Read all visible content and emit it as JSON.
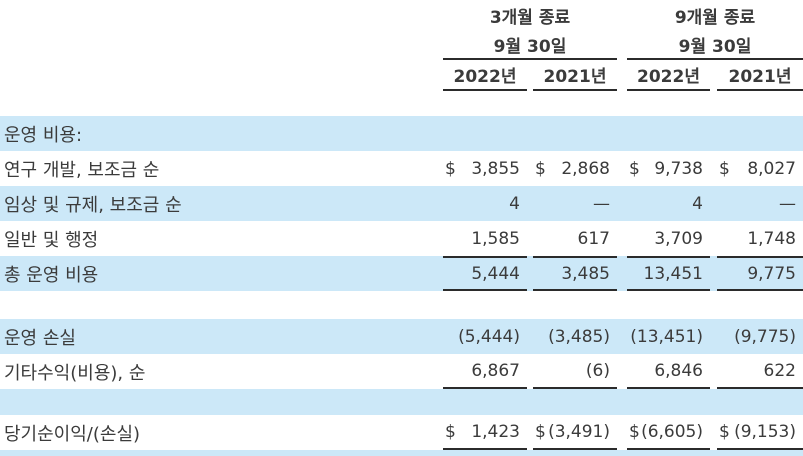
{
  "table": {
    "currency_symbol": "$",
    "colors": {
      "row_highlight": "#cce8f8",
      "text": "#3b3b3b",
      "rule": "#2b2b2b"
    },
    "header": {
      "groups": [
        {
          "period_label": "3개월 종료",
          "date_label": "9월 30일",
          "years": [
            "2022년",
            "2021년"
          ]
        },
        {
          "period_label": "9개월 종료",
          "date_label": "9월 30일",
          "years": [
            "2022년",
            "2021년"
          ]
        }
      ]
    },
    "rows": [
      {
        "label": "운영 비용:",
        "values": [
          "",
          "",
          "",
          ""
        ]
      },
      {
        "label": "연구 개발, 보조금 순",
        "values": [
          "3,855",
          "2,868",
          "9,738",
          "8,027"
        ]
      },
      {
        "label": "임상 및 규제, 보조금 순",
        "values": [
          "4",
          "—",
          "4",
          "—"
        ]
      },
      {
        "label": "일반 및 행정",
        "values": [
          "1,585",
          "617",
          "3,709",
          "1,748"
        ]
      },
      {
        "label": "총 운영 비용",
        "values": [
          "5,444",
          "3,485",
          "13,451",
          "9,775"
        ]
      },
      {
        "label": "운영 손실",
        "values": [
          "(5,444)",
          "(3,485)",
          "(13,451)",
          "(9,775)"
        ]
      },
      {
        "label": "기타수익(비용), 순",
        "values": [
          "6,867",
          "(6)",
          "6,846",
          "622"
        ]
      },
      {
        "label": "당기순이익/(손실)",
        "values": [
          "1,423",
          "(3,491)",
          "(6,605)",
          "(9,153)"
        ]
      }
    ]
  }
}
